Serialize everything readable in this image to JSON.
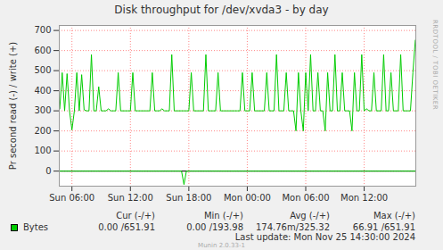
{
  "chart_data": {
    "type": "line",
    "title": "Disk throughput for /dev/xvda3 - by day",
    "y_label": "Pr second read (-) / write (+)",
    "xlim": [
      4.7,
      41.3
    ],
    "xticks": [
      {
        "value": 6,
        "label": "Sun 06:00"
      },
      {
        "value": 12,
        "label": "Sun 12:00"
      },
      {
        "value": 18,
        "label": "Sun 18:00"
      },
      {
        "value": 24,
        "label": "Mon 00:00"
      },
      {
        "value": 30,
        "label": "Mon 06:00"
      },
      {
        "value": 36,
        "label": "Mon 12:00"
      }
    ],
    "ylim": [
      -75,
      725
    ],
    "yticks": [
      0,
      100,
      200,
      300,
      400,
      500,
      600,
      700
    ],
    "grid": true,
    "x": [
      4.75,
      5,
      5.25,
      5.5,
      5.75,
      6,
      6.25,
      6.5,
      6.75,
      7,
      7.25,
      7.5,
      7.75,
      8,
      8.25,
      8.5,
      8.75,
      9,
      9.25,
      9.5,
      9.75,
      10,
      10.25,
      10.5,
      10.75,
      11,
      11.25,
      11.5,
      11.75,
      12,
      12.25,
      12.5,
      12.75,
      13,
      13.25,
      13.5,
      13.75,
      14,
      14.25,
      14.5,
      14.75,
      15,
      15.25,
      15.5,
      15.75,
      16,
      16.25,
      16.5,
      16.75,
      17,
      17.25,
      17.5,
      17.75,
      18,
      18.25,
      18.5,
      18.75,
      19,
      19.25,
      19.5,
      19.75,
      20,
      20.25,
      20.5,
      20.75,
      21,
      21.25,
      21.5,
      21.75,
      22,
      22.25,
      22.5,
      22.75,
      23,
      23.25,
      23.5,
      23.75,
      24,
      24.25,
      24.5,
      24.75,
      25,
      25.25,
      25.5,
      25.75,
      26,
      26.25,
      26.5,
      26.75,
      27,
      27.25,
      27.5,
      27.75,
      28,
      28.25,
      28.5,
      28.75,
      29,
      29.25,
      29.5,
      29.75,
      30,
      30.25,
      30.5,
      30.75,
      31,
      31.25,
      31.5,
      31.75,
      32,
      32.25,
      32.5,
      32.75,
      33,
      33.25,
      33.5,
      33.75,
      34,
      34.25,
      34.5,
      34.75,
      35,
      35.25,
      35.5,
      35.75,
      36,
      36.25,
      36.5,
      36.75,
      37,
      37.25,
      37.5,
      37.75,
      38,
      38.25,
      38.5,
      38.75,
      39,
      39.25,
      39.5,
      39.75,
      40,
      40.25,
      40.5,
      40.75,
      41,
      41.25
    ],
    "series": [
      {
        "name": "Bytes",
        "color": "#00cc00",
        "values": [
          310,
          490,
          300,
          485,
          300,
          205,
          300,
          490,
          300,
          480,
          305,
          300,
          300,
          580,
          300,
          300,
          420,
          300,
          300,
          300,
          310,
          300,
          300,
          300,
          490,
          300,
          300,
          300,
          300,
          300,
          490,
          300,
          300,
          300,
          300,
          300,
          300,
          300,
          490,
          300,
          300,
          300,
          310,
          300,
          300,
          300,
          580,
          300,
          300,
          300,
          300,
          300,
          300,
          300,
          490,
          300,
          300,
          300,
          300,
          300,
          580,
          300,
          300,
          300,
          300,
          490,
          300,
          300,
          300,
          300,
          300,
          300,
          300,
          300,
          300,
          490,
          300,
          300,
          300,
          490,
          300,
          300,
          300,
          300,
          300,
          490,
          300,
          300,
          300,
          580,
          300,
          300,
          300,
          490,
          300,
          300,
          300,
          200,
          490,
          300,
          200,
          490,
          300,
          580,
          300,
          300,
          490,
          300,
          300,
          200,
          490,
          300,
          300,
          580,
          300,
          300,
          490,
          300,
          300,
          300,
          200,
          490,
          300,
          300,
          580,
          300,
          310,
          300,
          300,
          490,
          300,
          300,
          300,
          580,
          300,
          300,
          490,
          300,
          300,
          300,
          580,
          300,
          300,
          300,
          300,
          490,
          651.91
        ],
        "read_values": [
          0,
          0,
          0,
          0,
          0,
          0,
          0,
          0,
          0,
          0,
          0,
          0,
          0,
          0,
          0,
          0,
          0,
          0,
          0,
          0,
          0,
          0,
          0,
          0,
          0,
          0,
          0,
          0,
          0,
          0,
          0,
          0,
          0,
          0,
          0,
          0,
          0,
          0,
          0,
          0,
          0,
          0,
          0,
          0,
          0,
          0,
          0,
          0,
          0,
          0,
          0,
          -66.91,
          0,
          0,
          0,
          0,
          0,
          0,
          0,
          0,
          0,
          0,
          0,
          0,
          0,
          0,
          0,
          0,
          0,
          0,
          0,
          0,
          0,
          0,
          0,
          0,
          0,
          0,
          0,
          0,
          0,
          0,
          0,
          0,
          0,
          0,
          0,
          0,
          0,
          0,
          0,
          0,
          0,
          0,
          0,
          0,
          0,
          0,
          0,
          0,
          0,
          0,
          0,
          0,
          0,
          0,
          0,
          0,
          0,
          0,
          0,
          0,
          0,
          0,
          0,
          0,
          0,
          0,
          0,
          0,
          0,
          0,
          0,
          0,
          0,
          0,
          0,
          0,
          0,
          0,
          0,
          0,
          0,
          0,
          0,
          0,
          0,
          0,
          0,
          0,
          0,
          0,
          0,
          0,
          0,
          0,
          0
        ]
      }
    ],
    "summary": {
      "headers": [
        "Cur (-/+)",
        "Min (-/+)",
        "Avg (-/+)",
        "Max (-/+)"
      ],
      "values": [
        "0.00 /651.91",
        "0.00 /193.98",
        "174.76m/325.32",
        "66.91 /651.91"
      ]
    },
    "last_update": "Last update: Mon Nov 25 14:30:00 2024",
    "watermark": "RRDTOOL / TOBI OETIKER",
    "credit": "Munin 2.0.33-1"
  }
}
